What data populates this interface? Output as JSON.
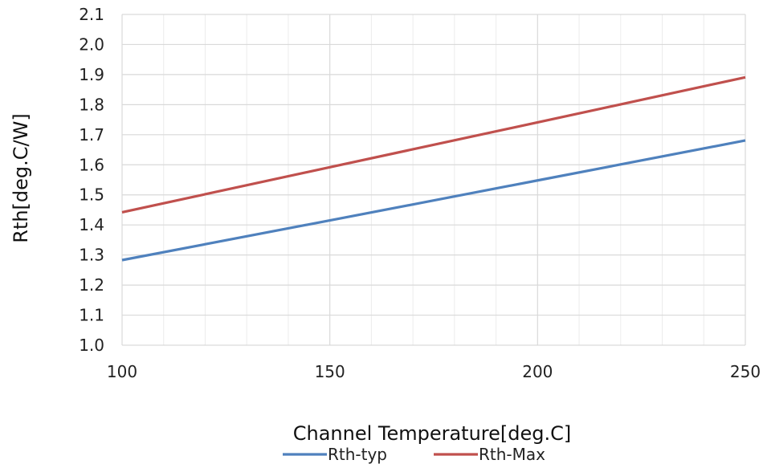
{
  "chart_data": {
    "type": "line",
    "title": "",
    "xlabel": "Channel Temperature[deg.C]",
    "ylabel": "Rth[deg.C/W]",
    "xlim": [
      100,
      250
    ],
    "ylim": [
      1.0,
      2.1
    ],
    "x_ticks": [
      "100",
      "150",
      "200",
      "250"
    ],
    "y_ticks": [
      "1.0",
      "1.1",
      "1.2",
      "1.3",
      "1.4",
      "1.5",
      "1.6",
      "1.7",
      "1.8",
      "1.9",
      "2.0",
      "2.1"
    ],
    "grid": true,
    "legend_position": "bottom",
    "series": [
      {
        "name": "Rth-typ",
        "color": "#4f81bd",
        "x": [
          100,
          150,
          200,
          250
        ],
        "y": [
          1.283,
          1.415,
          1.548,
          1.681
        ]
      },
      {
        "name": "Rth-Max",
        "color": "#c0504d",
        "x": [
          100,
          150,
          200,
          250
        ],
        "y": [
          1.442,
          1.592,
          1.741,
          1.891
        ]
      }
    ]
  }
}
